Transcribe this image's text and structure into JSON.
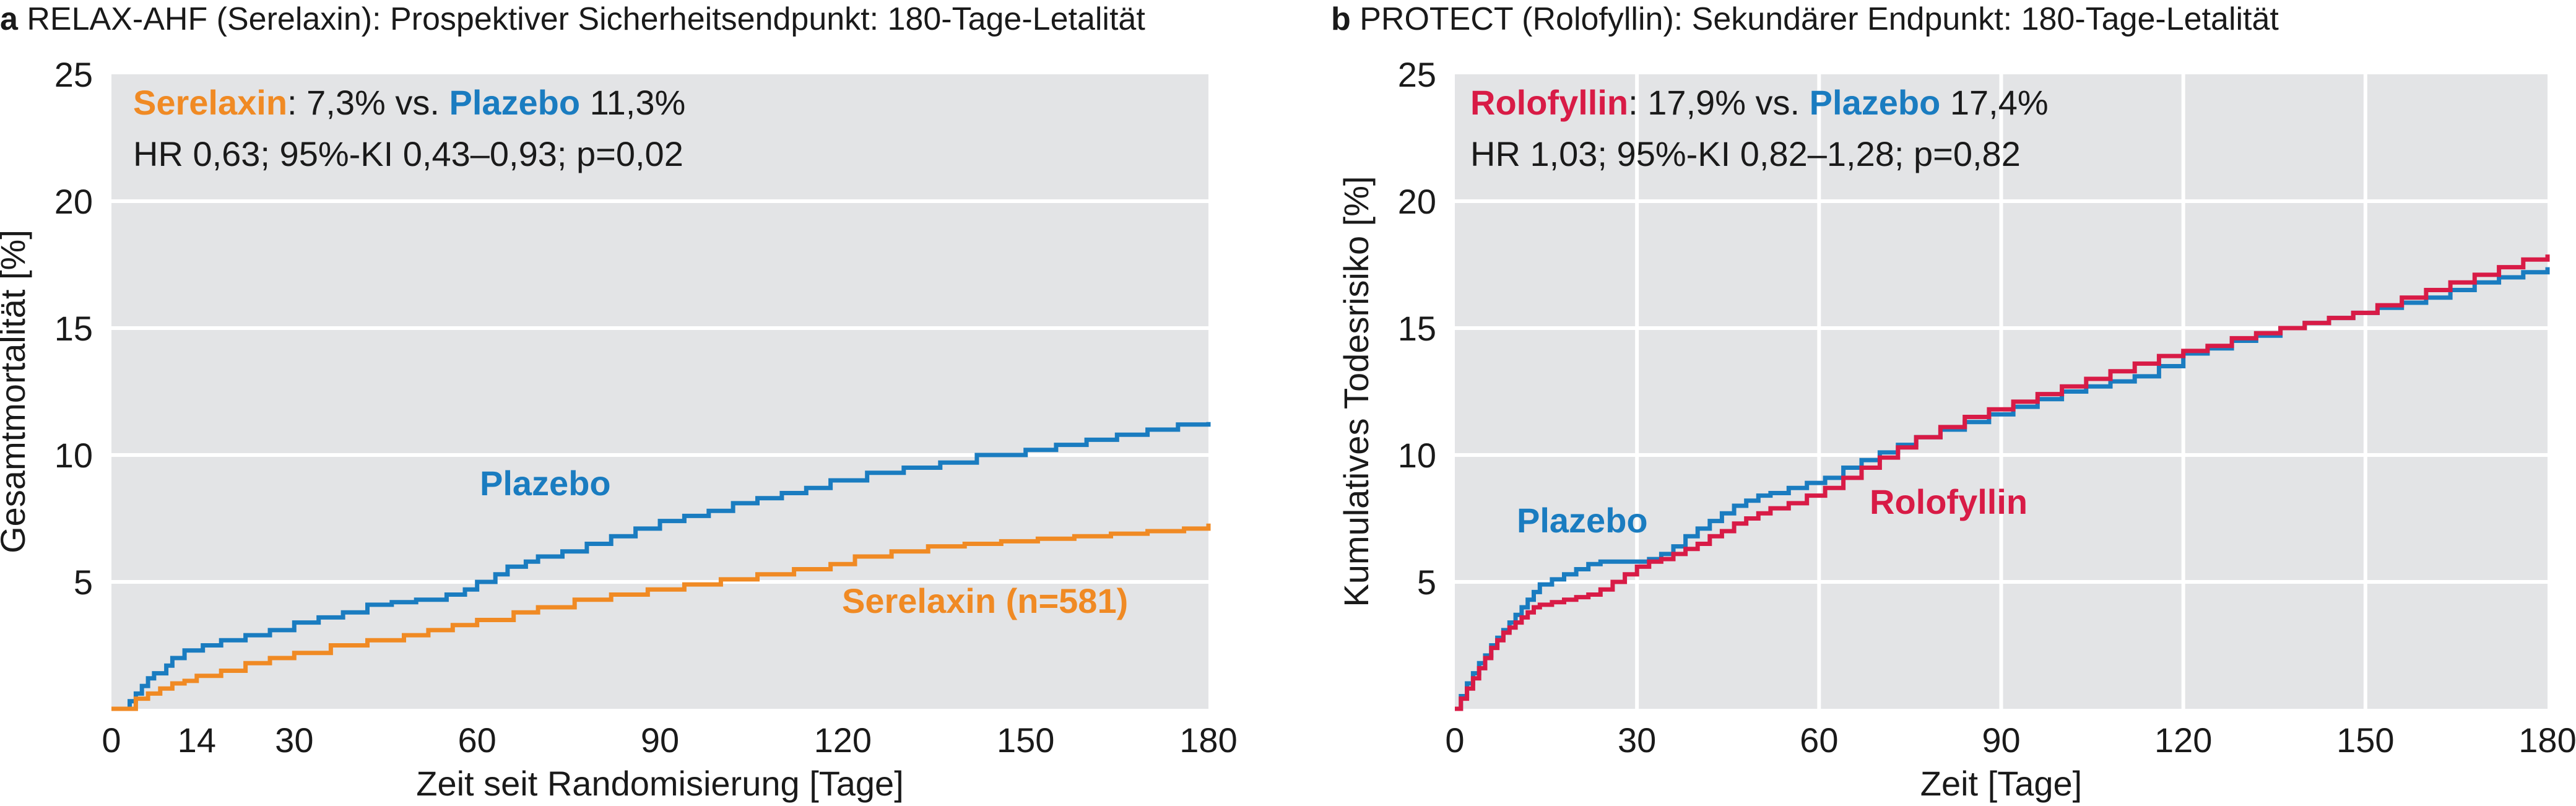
{
  "colors": {
    "plot_bg": "#e3e4e6",
    "grid": "#ffffff",
    "text": "#1a1a1a",
    "placebo": "#1a7cc0",
    "serelaxin": "#f08a24",
    "rolofyllin": "#d81b46"
  },
  "chart_data": [
    {
      "type": "line",
      "panel_letter": "a",
      "title": "RELAX-AHF (Serelaxin): Prospektiver Sicherheitsendpunkt: 180-Tage-Letalität",
      "xlabel": "Zeit seit Randomisierung [Tage]",
      "ylabel": "Gesamtmortalität [%]",
      "xlim": [
        0,
        180
      ],
      "ylim": [
        0,
        25
      ],
      "x_ticks": [
        0,
        14,
        30,
        60,
        90,
        120,
        150,
        180
      ],
      "y_ticks": [
        5,
        10,
        15,
        20,
        25
      ],
      "grid": "horizontal",
      "step": true,
      "annotation": {
        "line1": [
          {
            "text": "Serelaxin",
            "series": "serelaxin"
          },
          {
            "text": ": 7,3% vs. "
          },
          {
            "text": "Plazebo",
            "series": "placebo"
          },
          {
            "text": " 11,3%"
          }
        ],
        "line2": "HR 0,63; 95%-KI 0,43–0,93; p=0,02"
      },
      "series": [
        {
          "name": "Plazebo",
          "key": "placebo",
          "label": "Plazebo",
          "x": [
            0,
            3,
            4,
            5,
            6,
            7,
            9,
            10,
            12,
            15,
            18,
            22,
            26,
            30,
            34,
            38,
            42,
            46,
            50,
            55,
            58,
            60,
            63,
            65,
            68,
            70,
            74,
            78,
            82,
            86,
            90,
            94,
            98,
            102,
            106,
            110,
            114,
            118,
            124,
            130,
            136,
            142,
            150,
            155,
            160,
            165,
            170,
            175,
            180
          ],
          "values": [
            0,
            0.3,
            0.6,
            0.9,
            1.2,
            1.4,
            1.7,
            2.0,
            2.3,
            2.5,
            2.7,
            2.9,
            3.1,
            3.4,
            3.6,
            3.8,
            4.1,
            4.2,
            4.3,
            4.5,
            4.7,
            5.0,
            5.3,
            5.6,
            5.8,
            6.0,
            6.2,
            6.5,
            6.8,
            7.1,
            7.4,
            7.6,
            7.8,
            8.1,
            8.3,
            8.5,
            8.7,
            9.0,
            9.3,
            9.5,
            9.7,
            10.0,
            10.2,
            10.4,
            10.6,
            10.8,
            11.0,
            11.2,
            11.3
          ]
        },
        {
          "name": "Serelaxin",
          "key": "serelaxin",
          "label": "Serelaxin (n=581)",
          "x": [
            0,
            4,
            6,
            8,
            10,
            12,
            14,
            18,
            22,
            26,
            30,
            36,
            42,
            48,
            52,
            56,
            60,
            66,
            70,
            76,
            82,
            88,
            94,
            100,
            106,
            112,
            118,
            122,
            128,
            134,
            140,
            146,
            152,
            158,
            164,
            170,
            176,
            180
          ],
          "values": [
            0,
            0.4,
            0.6,
            0.8,
            1.0,
            1.1,
            1.3,
            1.5,
            1.8,
            2.0,
            2.2,
            2.5,
            2.7,
            2.9,
            3.1,
            3.3,
            3.5,
            3.8,
            4.0,
            4.3,
            4.5,
            4.7,
            4.9,
            5.1,
            5.3,
            5.5,
            5.7,
            6.0,
            6.2,
            6.4,
            6.5,
            6.6,
            6.7,
            6.8,
            6.9,
            7.0,
            7.1,
            7.3
          ]
        }
      ]
    },
    {
      "type": "line",
      "panel_letter": "b",
      "title": "PROTECT (Rolofyllin): Sekundärer Endpunkt: 180-Tage-Letalität",
      "xlabel": "Zeit [Tage]",
      "ylabel": "Kumulatives Todesrisiko [%]",
      "xlim": [
        0,
        180
      ],
      "ylim": [
        0,
        25
      ],
      "x_ticks": [
        0,
        30,
        60,
        90,
        120,
        150,
        180
      ],
      "y_ticks": [
        5,
        10,
        15,
        20,
        25
      ],
      "grid": "both",
      "step": true,
      "annotation": {
        "line1": [
          {
            "text": "Rolofyllin",
            "series": "rolofyllin"
          },
          {
            "text": ": 17,9% vs. "
          },
          {
            "text": "Plazebo",
            "series": "placebo"
          },
          {
            "text": " 17,4%"
          }
        ],
        "line2": "HR 1,03; 95%-KI 0,82–1,28; p=0,82"
      },
      "series": [
        {
          "name": "Plazebo",
          "key": "placebo",
          "label": "Plazebo",
          "x": [
            0,
            1,
            2,
            3,
            4,
            5,
            6,
            7,
            8,
            9,
            10,
            11,
            12,
            13,
            14,
            16,
            18,
            20,
            22,
            24,
            26,
            28,
            30,
            32,
            34,
            36,
            38,
            40,
            42,
            44,
            46,
            48,
            50,
            52,
            55,
            58,
            61,
            64,
            67,
            70,
            73,
            76,
            80,
            84,
            88,
            92,
            96,
            100,
            104,
            108,
            112,
            116,
            120,
            124,
            128,
            132,
            136,
            140,
            144,
            148,
            152,
            156,
            160,
            164,
            168,
            172,
            176,
            180
          ],
          "values": [
            0,
            0.5,
            1.0,
            1.4,
            1.8,
            2.1,
            2.5,
            2.8,
            3.1,
            3.4,
            3.7,
            4.0,
            4.3,
            4.6,
            4.9,
            5.1,
            5.3,
            5.5,
            5.7,
            5.8,
            5.8,
            5.8,
            5.8,
            5.9,
            6.1,
            6.4,
            6.8,
            7.1,
            7.4,
            7.7,
            8.0,
            8.2,
            8.4,
            8.5,
            8.7,
            8.9,
            9.1,
            9.5,
            9.8,
            10.1,
            10.4,
            10.7,
            11.0,
            11.3,
            11.6,
            11.9,
            12.2,
            12.5,
            12.7,
            12.9,
            13.1,
            13.5,
            14.0,
            14.2,
            14.5,
            14.7,
            15.0,
            15.2,
            15.4,
            15.6,
            15.8,
            16.0,
            16.2,
            16.5,
            16.8,
            17.0,
            17.2,
            17.4
          ]
        },
        {
          "name": "Rolofyllin",
          "key": "rolofyllin",
          "label": "Rolofyllin",
          "x": [
            0,
            1,
            2,
            3,
            4,
            5,
            6,
            7,
            8,
            9,
            10,
            11,
            12,
            13,
            14,
            16,
            18,
            20,
            22,
            24,
            26,
            28,
            30,
            32,
            34,
            36,
            38,
            40,
            42,
            44,
            46,
            48,
            50,
            52,
            55,
            58,
            61,
            64,
            67,
            70,
            73,
            76,
            80,
            84,
            88,
            92,
            96,
            100,
            104,
            108,
            112,
            116,
            120,
            124,
            128,
            132,
            136,
            140,
            144,
            148,
            152,
            156,
            160,
            164,
            168,
            172,
            176,
            180
          ],
          "values": [
            0,
            0.4,
            0.8,
            1.2,
            1.6,
            2.0,
            2.4,
            2.7,
            3.0,
            3.2,
            3.4,
            3.6,
            3.8,
            4.0,
            4.1,
            4.2,
            4.3,
            4.4,
            4.5,
            4.7,
            5.0,
            5.3,
            5.6,
            5.8,
            5.9,
            6.1,
            6.3,
            6.5,
            6.8,
            7.0,
            7.3,
            7.5,
            7.7,
            7.9,
            8.1,
            8.4,
            8.7,
            9.1,
            9.5,
            9.9,
            10.3,
            10.7,
            11.1,
            11.5,
            11.8,
            12.1,
            12.4,
            12.7,
            13.0,
            13.3,
            13.6,
            13.9,
            14.1,
            14.3,
            14.6,
            14.8,
            15.0,
            15.2,
            15.4,
            15.6,
            15.9,
            16.2,
            16.5,
            16.8,
            17.1,
            17.4,
            17.7,
            17.9
          ]
        }
      ]
    }
  ]
}
